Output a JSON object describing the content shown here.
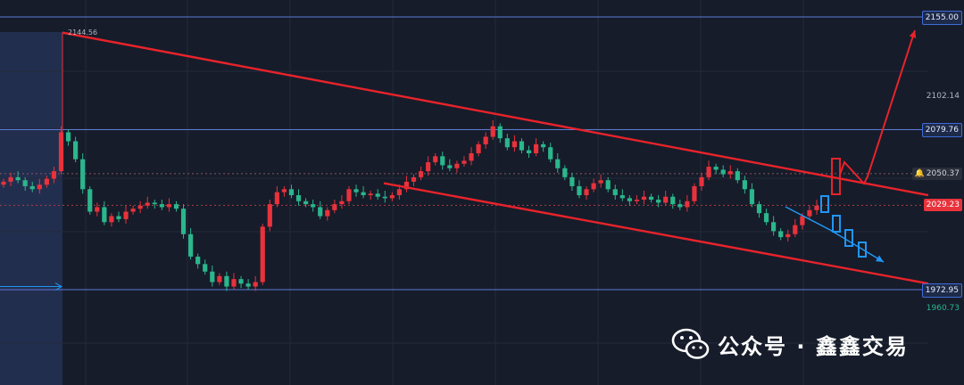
{
  "chart_data": {
    "type": "candlestick",
    "symbol": "",
    "ylim": [
      1955,
      2162
    ],
    "y_scale_labels": [
      "2155.00",
      "2102.14",
      "2079.76",
      "2050.37",
      "2029.23",
      "1972.95",
      "1960.73"
    ],
    "horizontal_levels": [
      {
        "value": 2155.0,
        "label": "2155.00",
        "style": "boxed"
      },
      {
        "value": 2079.76,
        "label": "2079.76",
        "style": "boxed"
      },
      {
        "value": 1972.95,
        "label": "1972.95",
        "style": "boxed"
      }
    ],
    "current_price": {
      "value": 2029.23,
      "label": "2029.23"
    },
    "alert_price": {
      "value": 2050.37,
      "label": "2050.37"
    },
    "plain_scale_labels": [
      {
        "value": 2102.14,
        "label": "2102.14",
        "color": "#b2b5be"
      },
      {
        "value": 1960.73,
        "label": "1960.73",
        "color": "#2bb68c"
      }
    ],
    "high_marker": {
      "value": 2144.56,
      "label": "2144.56"
    },
    "close_series": [
      2045,
      2048,
      2046,
      2042,
      2040,
      2043,
      2047,
      2052,
      2078,
      2072,
      2060,
      2040,
      2025,
      2028,
      2018,
      2022,
      2020,
      2025,
      2027,
      2029,
      2031,
      2030,
      2028,
      2030,
      2027,
      2010,
      1995,
      1990,
      1985,
      1978,
      1982,
      1975,
      1980,
      1977,
      1975,
      1978,
      2015,
      2030,
      2038,
      2040,
      2036,
      2032,
      2030,
      2028,
      2022,
      2026,
      2030,
      2032,
      2040,
      2038,
      2036,
      2037,
      2035,
      2034,
      2036,
      2040,
      2045,
      2048,
      2052,
      2058,
      2062,
      2056,
      2054,
      2057,
      2059,
      2064,
      2070,
      2075,
      2082,
      2074,
      2068,
      2072,
      2066,
      2064,
      2070,
      2068,
      2060,
      2054,
      2048,
      2042,
      2036,
      2040,
      2044,
      2046,
      2040,
      2036,
      2034,
      2032,
      2033,
      2035,
      2033,
      2031,
      2035,
      2030,
      2028,
      2032,
      2042,
      2048,
      2055,
      2053,
      2050,
      2052,
      2046,
      2040,
      2030,
      2024,
      2018,
      2012,
      2008,
      2010,
      2016,
      2022,
      2026,
      2029
    ]
  },
  "annotations": {
    "upper_trendline": {
      "from_price": 2144.56,
      "to_price": 2036
    },
    "lower_trendline": {
      "from_price": 2044,
      "to_price": 1977
    },
    "scenario_up_target": 2155.0
  },
  "watermark": {
    "text": "公众号 · 鑫鑫交易",
    "icon": "wechat-icon"
  },
  "colors": {
    "up": "#e8323c",
    "down": "#2bb68c",
    "level": "#5b7bd5",
    "trend": "#e8232b",
    "projection": "#2196f3",
    "bg": "#161c2a"
  }
}
